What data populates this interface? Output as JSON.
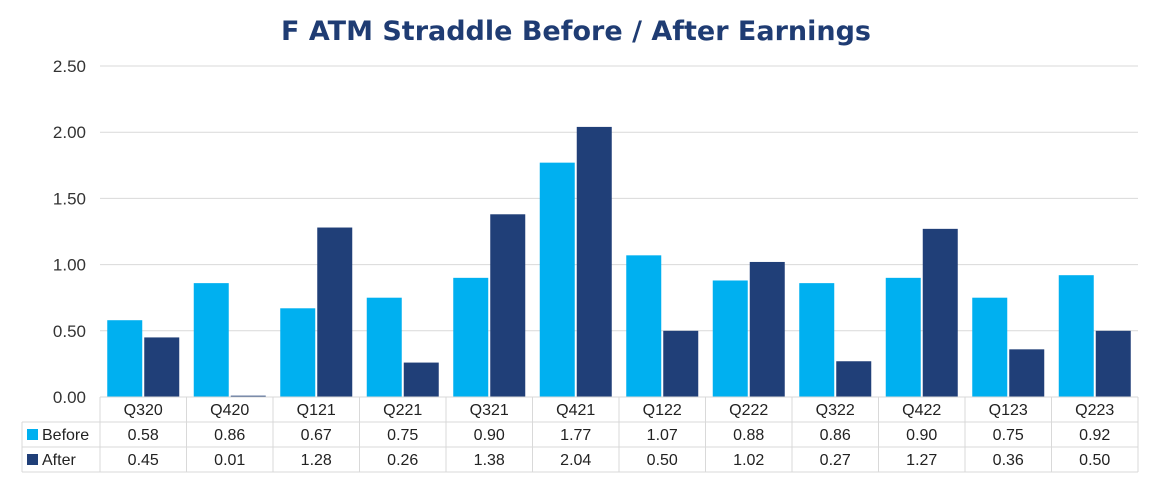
{
  "chart_data": {
    "type": "bar",
    "title": "F ATM Straddle Before / After Earnings",
    "categories": [
      "Q320",
      "Q420",
      "Q121",
      "Q221",
      "Q321",
      "Q421",
      "Q122",
      "Q222",
      "Q322",
      "Q422",
      "Q123",
      "Q223"
    ],
    "series": [
      {
        "name": "Before",
        "color": "#00b0f0",
        "values": [
          0.58,
          0.86,
          0.67,
          0.75,
          0.9,
          1.77,
          1.07,
          0.88,
          0.86,
          0.9,
          0.75,
          0.92
        ],
        "labels": [
          "0.58",
          "0.86",
          "0.67",
          "0.75",
          "0.90",
          "1.77",
          "1.07",
          "0.88",
          "0.86",
          "0.90",
          "0.75",
          "0.92"
        ]
      },
      {
        "name": "After",
        "color": "#203f78",
        "values": [
          0.45,
          0.01,
          1.28,
          0.26,
          1.38,
          2.04,
          0.5,
          1.02,
          0.27,
          1.27,
          0.36,
          0.5
        ],
        "labels": [
          "0.45",
          "0.01",
          "1.28",
          "0.26",
          "1.38",
          "2.04",
          "0.50",
          "1.02",
          "0.27",
          "1.27",
          "0.36",
          "0.50"
        ]
      }
    ],
    "ylim": [
      0,
      2.5
    ],
    "yticks": [
      "0.00",
      "0.50",
      "1.00",
      "1.50",
      "2.00",
      "2.50"
    ],
    "grid": true,
    "legend": "data-table"
  }
}
